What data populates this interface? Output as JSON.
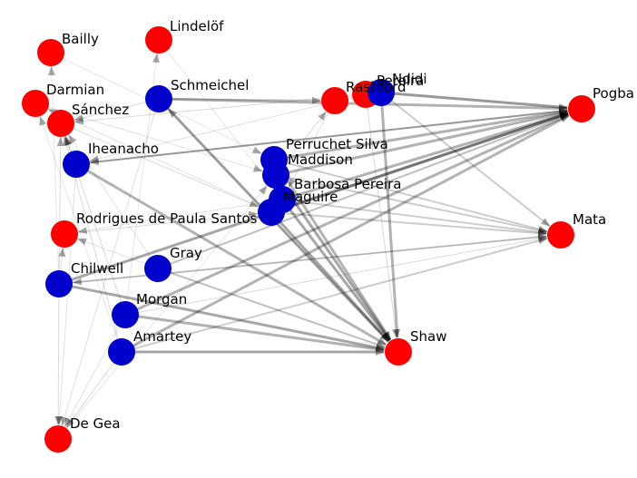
{
  "colors": {
    "team_red": "#ff0000",
    "team_blue": "#0000cc",
    "edge": "#000000"
  },
  "nodes": [
    {
      "id": "bailly",
      "label": "Bailly",
      "team": "red"
    },
    {
      "id": "lindelof",
      "label": "Lindelöf",
      "team": "red"
    },
    {
      "id": "darmian",
      "label": "Darmian",
      "team": "red"
    },
    {
      "id": "sanchez",
      "label": "Sánchez",
      "team": "red"
    },
    {
      "id": "schmeichel",
      "label": "Schmeichel",
      "team": "blue"
    },
    {
      "id": "rashford",
      "label": "Rashford",
      "team": "red"
    },
    {
      "id": "pereira",
      "label": "Pereira",
      "team": "red"
    },
    {
      "id": "ndidi",
      "label": "Ndidi",
      "team": "blue"
    },
    {
      "id": "pogba",
      "label": "Pogba",
      "team": "red"
    },
    {
      "id": "iheanacho",
      "label": "Iheanacho",
      "team": "blue"
    },
    {
      "id": "perruchet",
      "label": "Perruchet Silva",
      "team": "blue"
    },
    {
      "id": "maddison",
      "label": "Maddison",
      "team": "blue"
    },
    {
      "id": "barbosa",
      "label": "Barbosa Pereira",
      "team": "blue"
    },
    {
      "id": "maguire",
      "label": "Maguire",
      "team": "blue"
    },
    {
      "id": "rodrigues",
      "label": "Rodrigues de Paula Santos",
      "team": "red"
    },
    {
      "id": "mata",
      "label": "Mata",
      "team": "red"
    },
    {
      "id": "gray",
      "label": "Gray",
      "team": "blue"
    },
    {
      "id": "chilwell",
      "label": "Chilwell",
      "team": "blue"
    },
    {
      "id": "morgan",
      "label": "Morgan",
      "team": "blue"
    },
    {
      "id": "amartey",
      "label": "Amartey",
      "team": "blue"
    },
    {
      "id": "shaw",
      "label": "Shaw",
      "team": "red"
    },
    {
      "id": "degea",
      "label": "De Gea",
      "team": "red"
    }
  ],
  "edges": [
    [
      "chilwell",
      "pogba",
      0.35
    ],
    [
      "chilwell",
      "shaw",
      0.35
    ],
    [
      "chilwell",
      "mata",
      0.2
    ],
    [
      "chilwell",
      "degea",
      0.15
    ],
    [
      "chilwell",
      "sanchez",
      0.15
    ],
    [
      "amartey",
      "pogba",
      0.3
    ],
    [
      "amartey",
      "shaw",
      0.35
    ],
    [
      "amartey",
      "mata",
      0.2
    ],
    [
      "amartey",
      "degea",
      0.15
    ],
    [
      "amartey",
      "sanchez",
      0.15
    ],
    [
      "morgan",
      "pogba",
      0.3
    ],
    [
      "morgan",
      "shaw",
      0.3
    ],
    [
      "morgan",
      "mata",
      0.15
    ],
    [
      "morgan",
      "degea",
      0.12
    ],
    [
      "morgan",
      "sanchez",
      0.15
    ],
    [
      "gray",
      "pogba",
      0.25
    ],
    [
      "gray",
      "shaw",
      0.25
    ],
    [
      "gray",
      "sanchez",
      0.12
    ],
    [
      "iheanacho",
      "shaw",
      0.3
    ],
    [
      "iheanacho",
      "pogba",
      0.25
    ],
    [
      "iheanacho",
      "degea",
      0.12
    ],
    [
      "schmeichel",
      "shaw",
      0.35
    ],
    [
      "schmeichel",
      "pogba",
      0.3
    ],
    [
      "schmeichel",
      "sanchez",
      0.15
    ],
    [
      "schmeichel",
      "degea",
      0.12
    ],
    [
      "ndidi",
      "shaw",
      0.3
    ],
    [
      "ndidi",
      "pogba",
      0.4
    ],
    [
      "ndidi",
      "mata",
      0.2
    ],
    [
      "ndidi",
      "sanchez",
      0.15
    ],
    [
      "maguire",
      "shaw",
      0.35
    ],
    [
      "maguire",
      "pogba",
      0.3
    ],
    [
      "maguire",
      "mata",
      0.2
    ],
    [
      "maguire",
      "darmian",
      0.12
    ],
    [
      "barbosa",
      "shaw",
      0.35
    ],
    [
      "barbosa",
      "pogba",
      0.3
    ],
    [
      "barbosa",
      "mata",
      0.2
    ],
    [
      "barbosa",
      "rodrigues",
      0.12
    ],
    [
      "maddison",
      "shaw",
      0.35
    ],
    [
      "maddison",
      "pogba",
      0.3
    ],
    [
      "maddison",
      "mata",
      0.2
    ],
    [
      "maddison",
      "rashford",
      0.15
    ],
    [
      "perruchet",
      "shaw",
      0.3
    ],
    [
      "perruchet",
      "pogba",
      0.3
    ],
    [
      "perruchet",
      "mata",
      0.2
    ],
    [
      "sanchez",
      "maguire",
      0.15
    ],
    [
      "darmian",
      "maddison",
      0.12
    ],
    [
      "bailly",
      "perruchet",
      0.1
    ],
    [
      "lindelof",
      "barbosa",
      0.1
    ],
    [
      "rodrigues",
      "maguire",
      0.15
    ],
    [
      "degea",
      "maddison",
      0.1
    ],
    [
      "pereira",
      "shaw",
      0.15
    ],
    [
      "rashford",
      "barbosa",
      0.12
    ],
    [
      "pogba",
      "iheanacho",
      0.2
    ],
    [
      "mata",
      "chilwell",
      0.15
    ],
    [
      "shaw",
      "schmeichel",
      0.12
    ],
    [
      "pereira",
      "iheanacho",
      0.12
    ],
    [
      "chilwell",
      "bailly",
      0.1
    ],
    [
      "amartey",
      "darmian",
      0.1
    ],
    [
      "morgan",
      "lindelof",
      0.1
    ],
    [
      "gray",
      "rodrigues",
      0.12
    ],
    [
      "schmeichel",
      "rashford",
      0.2
    ],
    [
      "iheanacho",
      "sanchez",
      0.15
    ],
    [
      "chilwell",
      "rodrigues",
      0.12
    ]
  ]
}
